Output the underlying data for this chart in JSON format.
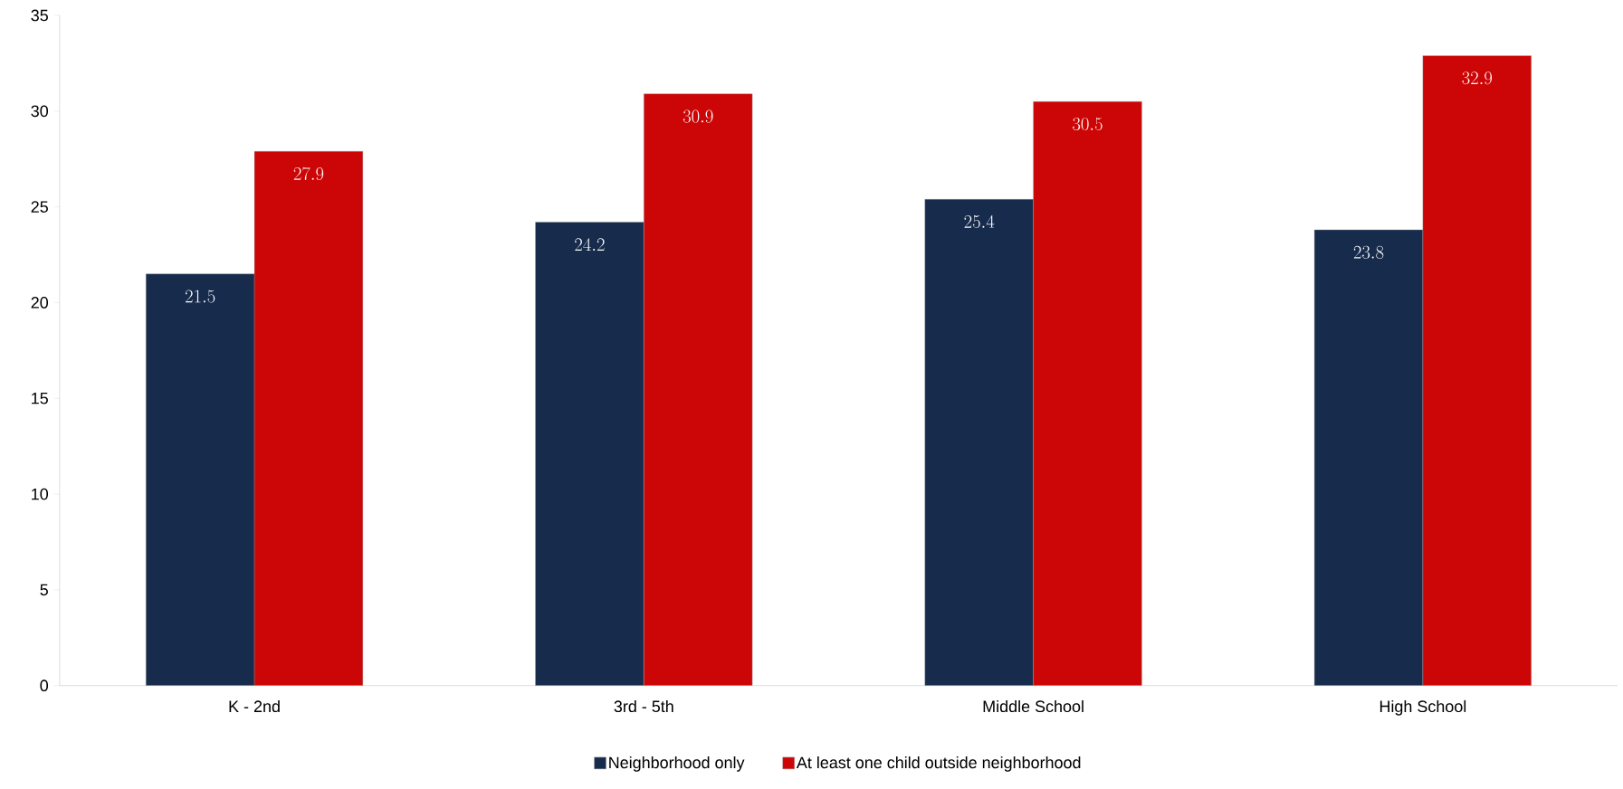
{
  "chart_data": {
    "type": "bar",
    "categories": [
      "K - 2nd",
      "3rd - 5th",
      "Middle School",
      "High School"
    ],
    "series": [
      {
        "name": "Neighborhood only",
        "color": "#172b4d",
        "values": [
          21.5,
          24.2,
          25.4,
          23.8
        ]
      },
      {
        "name": "At least one child outside neighborhood",
        "color": "#cc0606",
        "values": [
          27.9,
          30.9,
          30.5,
          32.9
        ]
      }
    ],
    "ylim": [
      0,
      35
    ],
    "yticks": [
      0,
      5,
      10,
      15,
      20,
      25,
      30,
      35
    ],
    "data_labels": true,
    "legend": "bottom",
    "grid": false
  }
}
